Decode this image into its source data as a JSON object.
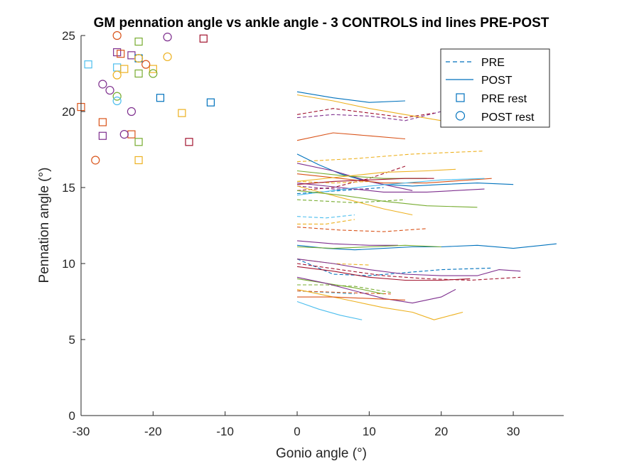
{
  "chart_data": {
    "type": "line",
    "title": "GM pennation angle vs ankle angle - 3 CONTROLS ind lines PRE-POST",
    "xlabel": "Gonio angle (°)",
    "ylabel": "Pennation angle (°)",
    "xlim": [
      -30,
      37
    ],
    "ylim": [
      0,
      25
    ],
    "xticks": [
      -30,
      -20,
      -10,
      0,
      10,
      20,
      30
    ],
    "yticks": [
      0,
      5,
      10,
      15,
      20,
      25
    ],
    "xtick_labels": [
      "-30",
      "-20",
      "-10",
      "0",
      "10",
      "20",
      "30"
    ],
    "ytick_labels": [
      "0",
      "5",
      "10",
      "15",
      "20",
      "25"
    ],
    "grid": false,
    "legend_position": "top-right",
    "legend": [
      {
        "label": "PRE",
        "style": "dashed-line"
      },
      {
        "label": "POST",
        "style": "solid-line"
      },
      {
        "label": "PRE rest",
        "style": "square-marker"
      },
      {
        "label": "POST rest",
        "style": "circle-marker"
      }
    ],
    "colors": [
      "#0072BD",
      "#D95319",
      "#EDB120",
      "#7E2F8E",
      "#77AC30",
      "#4DBEEE",
      "#A2142F"
    ],
    "pre_rest": [
      {
        "x": -29,
        "y": 23.1,
        "c": 5
      },
      {
        "x": -30,
        "y": 20.3,
        "c": 1
      },
      {
        "x": -27,
        "y": 19.3,
        "c": 1
      },
      {
        "x": -27,
        "y": 18.4,
        "c": 3
      },
      {
        "x": -25,
        "y": 23.9,
        "c": 3
      },
      {
        "x": -25,
        "y": 22.9,
        "c": 5
      },
      {
        "x": -24.5,
        "y": 23.8,
        "c": 1
      },
      {
        "x": -24,
        "y": 22.8,
        "c": 2
      },
      {
        "x": -23,
        "y": 23.7,
        "c": 3
      },
      {
        "x": -23,
        "y": 18.5,
        "c": 1
      },
      {
        "x": -22,
        "y": 24.6,
        "c": 4
      },
      {
        "x": -22,
        "y": 23.5,
        "c": 0
      },
      {
        "x": -22,
        "y": 22.5,
        "c": 4
      },
      {
        "x": -22,
        "y": 18.0,
        "c": 4
      },
      {
        "x": -22,
        "y": 16.8,
        "c": 2
      },
      {
        "x": -20,
        "y": 22.8,
        "c": 2
      },
      {
        "x": -19,
        "y": 20.9,
        "c": 0
      },
      {
        "x": -16,
        "y": 19.9,
        "c": 2
      },
      {
        "x": -15,
        "y": 18.0,
        "c": 6
      },
      {
        "x": -13,
        "y": 24.8,
        "c": 6
      },
      {
        "x": -12,
        "y": 20.6,
        "c": 0
      }
    ],
    "post_rest": [
      {
        "x": -28,
        "y": 16.8,
        "c": 1
      },
      {
        "x": -27,
        "y": 21.8,
        "c": 3
      },
      {
        "x": -26,
        "y": 21.4,
        "c": 3
      },
      {
        "x": -25,
        "y": 25.0,
        "c": 1
      },
      {
        "x": -25,
        "y": 22.4,
        "c": 2
      },
      {
        "x": -25,
        "y": 21.0,
        "c": 4
      },
      {
        "x": -25,
        "y": 20.7,
        "c": 5
      },
      {
        "x": -24,
        "y": 18.5,
        "c": 3
      },
      {
        "x": -23,
        "y": 20.0,
        "c": 3
      },
      {
        "x": -22,
        "y": 23.5,
        "c": 2
      },
      {
        "x": -21,
        "y": 23.1,
        "c": 1
      },
      {
        "x": -20,
        "y": 22.5,
        "c": 4
      },
      {
        "x": -18,
        "y": 24.9,
        "c": 3
      },
      {
        "x": -18,
        "y": 23.6,
        "c": 2
      }
    ],
    "pre_lines": [
      {
        "c": 3,
        "x": [
          0,
          5,
          10,
          15,
          20
        ],
        "y": [
          19.6,
          19.8,
          19.7,
          19.4,
          20.0
        ]
      },
      {
        "c": 6,
        "x": [
          0,
          5,
          10,
          15,
          19
        ],
        "y": [
          19.8,
          20.2,
          19.9,
          19.6,
          19.9
        ]
      },
      {
        "c": 2,
        "x": [
          0,
          8,
          16,
          26
        ],
        "y": [
          16.7,
          16.9,
          17.2,
          17.4
        ]
      },
      {
        "c": 6,
        "x": [
          0,
          5,
          10,
          15
        ],
        "y": [
          14.8,
          15.0,
          15.6,
          16.4
        ]
      },
      {
        "c": 0,
        "x": [
          0,
          6,
          12
        ],
        "y": [
          14.6,
          14.8,
          15.0
        ]
      },
      {
        "c": 3,
        "x": [
          0,
          5,
          10
        ],
        "y": [
          15.1,
          14.9,
          14.9
        ]
      },
      {
        "c": 4,
        "x": [
          0,
          8,
          15
        ],
        "y": [
          14.2,
          14.0,
          14.2
        ]
      },
      {
        "c": 2,
        "x": [
          0,
          5,
          10
        ],
        "y": [
          15.4,
          15.3,
          15.4
        ]
      },
      {
        "c": 5,
        "x": [
          0,
          4,
          8
        ],
        "y": [
          13.1,
          13.0,
          13.2
        ]
      },
      {
        "c": 2,
        "x": [
          0,
          4,
          8
        ],
        "y": [
          12.6,
          12.6,
          12.9
        ]
      },
      {
        "c": 1,
        "x": [
          0,
          6,
          12,
          18
        ],
        "y": [
          12.4,
          12.2,
          12.1,
          12.3
        ]
      },
      {
        "c": 0,
        "x": [
          0,
          5,
          10,
          15,
          20,
          27
        ],
        "y": [
          10.3,
          9.3,
          9.2,
          9.4,
          9.6,
          9.7
        ]
      },
      {
        "c": 2,
        "x": [
          0,
          5,
          10
        ],
        "y": [
          10.3,
          10.0,
          9.9
        ]
      },
      {
        "c": 6,
        "x": [
          0,
          6,
          12,
          18,
          24,
          31
        ],
        "y": [
          10.0,
          9.6,
          9.2,
          9.0,
          8.9,
          9.1
        ]
      },
      {
        "c": 4,
        "x": [
          0,
          4,
          8,
          13
        ],
        "y": [
          8.6,
          8.6,
          8.5,
          8.1
        ]
      },
      {
        "c": 5,
        "x": [
          0,
          4,
          8
        ],
        "y": [
          8.2,
          8.1,
          8.0
        ]
      },
      {
        "c": 1,
        "x": [
          0,
          6,
          13
        ],
        "y": [
          8.2,
          8.1,
          8.0
        ]
      }
    ],
    "post_lines": [
      {
        "c": 0,
        "x": [
          0,
          5,
          10,
          15
        ],
        "y": [
          21.3,
          20.9,
          20.6,
          20.7
        ]
      },
      {
        "c": 2,
        "x": [
          0,
          5,
          10,
          15,
          20
        ],
        "y": [
          21.1,
          20.7,
          20.2,
          19.8,
          19.4
        ]
      },
      {
        "c": 1,
        "x": [
          0,
          5,
          10,
          15
        ],
        "y": [
          18.1,
          18.6,
          18.4,
          18.2
        ]
      },
      {
        "c": 0,
        "x": [
          0,
          3,
          6,
          9,
          12,
          16,
          20,
          25,
          30
        ],
        "y": [
          17.2,
          16.5,
          15.9,
          15.5,
          15.2,
          15.1,
          15.2,
          15.3,
          15.2
        ]
      },
      {
        "c": 3,
        "x": [
          0,
          5,
          10,
          16
        ],
        "y": [
          16.6,
          16.1,
          15.4,
          14.8
        ]
      },
      {
        "c": 1,
        "x": [
          0,
          6,
          12,
          18,
          24,
          27
        ],
        "y": [
          15.9,
          15.6,
          15.3,
          15.3,
          15.5,
          15.6
        ]
      },
      {
        "c": 4,
        "x": [
          0,
          6,
          12,
          18
        ],
        "y": [
          16.1,
          15.8,
          15.6,
          15.6
        ]
      },
      {
        "c": 2,
        "x": [
          0,
          6,
          12,
          18,
          22
        ],
        "y": [
          15.4,
          15.7,
          16.0,
          16.1,
          16.2
        ]
      },
      {
        "c": 3,
        "x": [
          0,
          6,
          12,
          18,
          26
        ],
        "y": [
          15.3,
          15.0,
          14.7,
          14.7,
          14.9
        ]
      },
      {
        "c": 5,
        "x": [
          0,
          5,
          10,
          15,
          20,
          26
        ],
        "y": [
          14.5,
          14.8,
          15.1,
          15.3,
          15.5,
          15.6
        ]
      },
      {
        "c": 2,
        "x": [
          0,
          4,
          8,
          12,
          16
        ],
        "y": [
          15.1,
          14.6,
          14.1,
          13.6,
          13.2
        ]
      },
      {
        "c": 4,
        "x": [
          0,
          6,
          12,
          18,
          25
        ],
        "y": [
          14.8,
          14.5,
          14.1,
          13.8,
          13.7
        ]
      },
      {
        "c": 6,
        "x": [
          0,
          5,
          10,
          15,
          19
        ],
        "y": [
          15.2,
          15.4,
          15.5,
          15.6,
          15.6
        ]
      },
      {
        "c": 3,
        "x": [
          0,
          5,
          10,
          14
        ],
        "y": [
          11.5,
          11.3,
          11.2,
          11.2
        ]
      },
      {
        "c": 0,
        "x": [
          0,
          4,
          8,
          12,
          16,
          20,
          25,
          30,
          36
        ],
        "y": [
          11.2,
          11.0,
          10.9,
          11.0,
          11.1,
          11.1,
          11.2,
          11.0,
          11.3
        ]
      },
      {
        "c": 4,
        "x": [
          0,
          5,
          10,
          15,
          20
        ],
        "y": [
          11.1,
          11.0,
          11.1,
          11.2,
          11.1
        ]
      },
      {
        "c": 3,
        "x": [
          0,
          5,
          10,
          15,
          20,
          25,
          28,
          31
        ],
        "y": [
          10.3,
          10.0,
          9.6,
          9.3,
          9.2,
          9.2,
          9.6,
          9.5
        ]
      },
      {
        "c": 6,
        "x": [
          0,
          5,
          10,
          15,
          20,
          24
        ],
        "y": [
          9.8,
          9.5,
          9.1,
          8.9,
          8.9,
          9.0
        ]
      },
      {
        "c": 4,
        "x": [
          0,
          4,
          8,
          12
        ],
        "y": [
          9.0,
          8.7,
          8.4,
          8.0
        ]
      },
      {
        "c": 3,
        "x": [
          0,
          4,
          8,
          12,
          16,
          20,
          22
        ],
        "y": [
          9.1,
          8.7,
          8.2,
          7.7,
          7.4,
          7.8,
          8.3
        ]
      },
      {
        "c": 2,
        "x": [
          0,
          4,
          8,
          12,
          16,
          19,
          23
        ],
        "y": [
          8.3,
          7.9,
          7.5,
          7.1,
          6.8,
          6.3,
          6.8
        ]
      },
      {
        "c": 5,
        "x": [
          0,
          3,
          6,
          9
        ],
        "y": [
          7.5,
          7.0,
          6.6,
          6.3
        ]
      },
      {
        "c": 1,
        "x": [
          0,
          5,
          10,
          15
        ],
        "y": [
          7.8,
          7.8,
          7.7,
          7.6
        ]
      }
    ]
  }
}
